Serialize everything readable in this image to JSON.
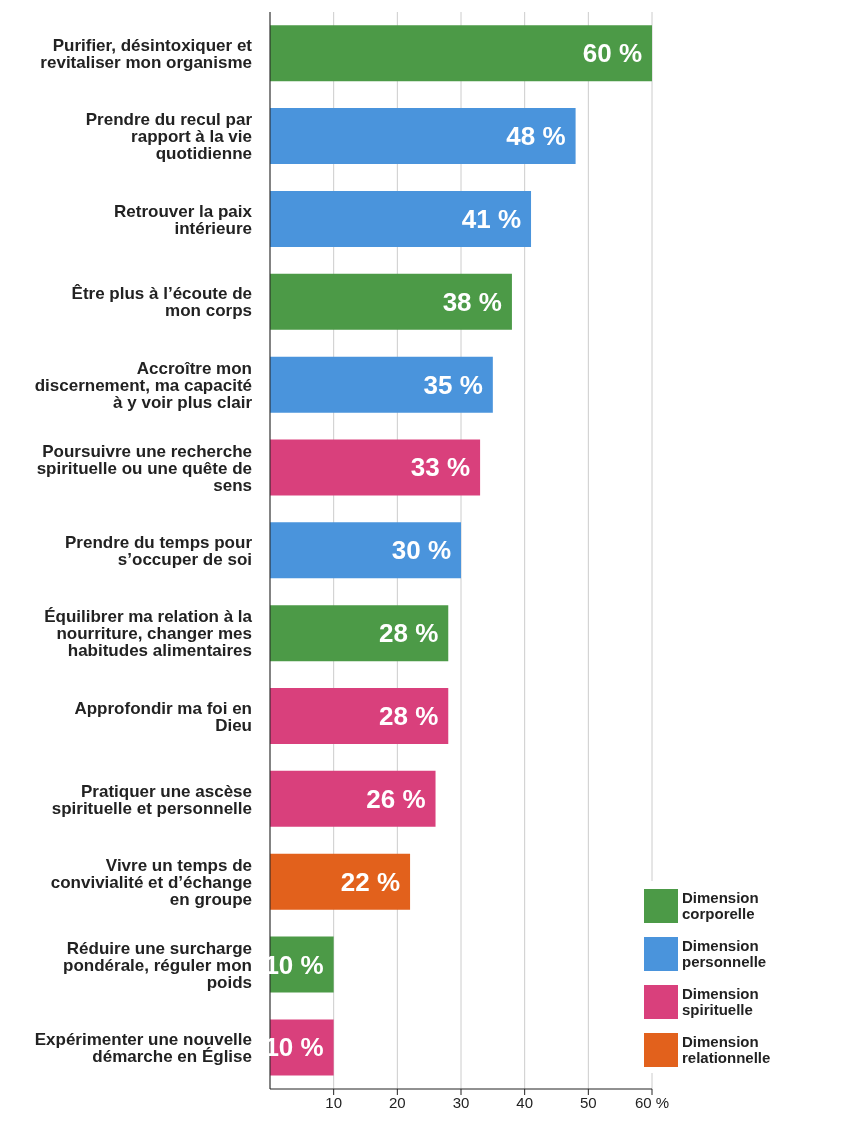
{
  "chart_data": {
    "type": "bar",
    "orientation": "horizontal",
    "stacked": true,
    "categories": [
      "Purifier, désintoxiquer et revitaliser mon organisme",
      "Prendre du recul par rapport à la vie quotidienne",
      "Retrouver la paix intérieure",
      "Être plus à l’écoute de mon corps",
      "Accroître mon discernement, ma capacité à y voir plus clair",
      "Poursuivre une recherche spirituelle ou une quête de sens",
      "Prendre du temps pour s’occuper de soi",
      "Équilibrer ma relation à la nourriture, changer mes habitudes alimentaires",
      "Approfondir ma foi en Dieu",
      "Pratiquer une ascèse spirituelle et personnelle",
      "Vivre un temps de convivialité et d’échange en groupe",
      "Réduire une surcharge pondérale, réguler mon poids",
      "Expérimenter une nouvelle démarche en Église"
    ],
    "series": [
      {
        "name": "Dimension corporelle",
        "color": "#4c9a47",
        "values": [
          60,
          null,
          null,
          38,
          null,
          null,
          null,
          28,
          null,
          null,
          null,
          10,
          null
        ],
        "value_labels": [
          "60 %",
          null,
          null,
          "38 %",
          null,
          null,
          null,
          "28 %",
          null,
          null,
          null,
          "10 %",
          null
        ]
      },
      {
        "name": "Dimension personnelle",
        "color": "#4a94dc",
        "values": [
          null,
          48,
          41,
          null,
          35,
          null,
          30,
          null,
          null,
          null,
          null,
          null,
          null
        ],
        "value_labels": [
          null,
          "48 %",
          "41 %",
          null,
          "35 %",
          null,
          "30 %",
          null,
          null,
          null,
          null,
          null,
          null
        ]
      },
      {
        "name": "Dimension spirituelle",
        "color": "#d9407c",
        "values": [
          null,
          null,
          null,
          null,
          null,
          33,
          null,
          null,
          28,
          26,
          null,
          null,
          10
        ],
        "value_labels": [
          null,
          null,
          null,
          null,
          null,
          "33 %",
          null,
          null,
          "28 %",
          "26 %",
          null,
          null,
          "10 %"
        ]
      },
      {
        "name": "Dimension relationnelle",
        "color": "#e2611c",
        "values": [
          null,
          null,
          null,
          null,
          null,
          null,
          null,
          null,
          null,
          null,
          22,
          null,
          null
        ],
        "value_labels": [
          null,
          null,
          null,
          null,
          null,
          null,
          null,
          null,
          null,
          null,
          "22 %",
          null,
          null
        ]
      }
    ],
    "xlim": [
      0,
      60
    ],
    "xticks": [
      10,
      20,
      30,
      40,
      50,
      {
        "value": 60,
        "label": "60 %"
      }
    ],
    "grid": "x",
    "legend": "bottom right"
  }
}
